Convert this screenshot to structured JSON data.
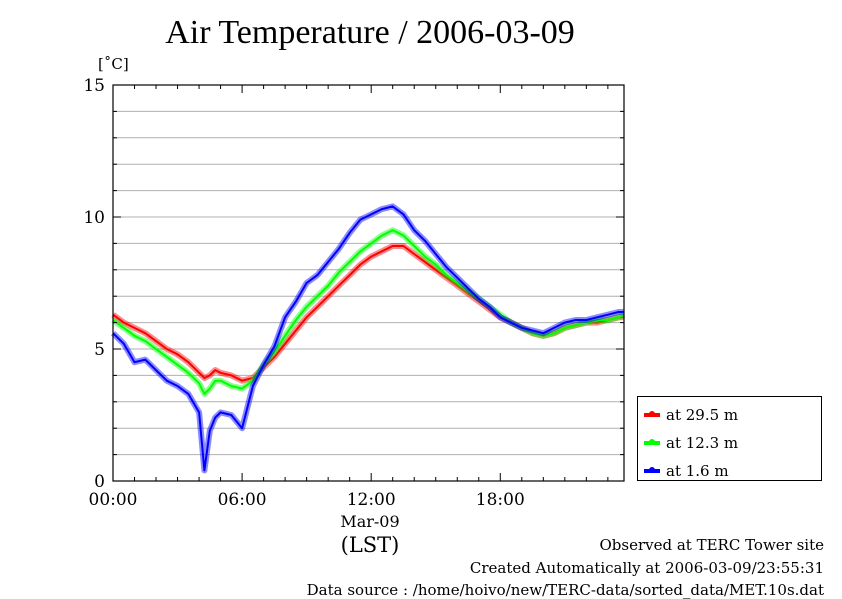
{
  "chart_data": {
    "type": "line",
    "title": "Air Temperature / 2006-03-09",
    "ylabel": "[˚C]",
    "xlabel": "(LST)",
    "x_date_label": "Mar-09",
    "ylim": [
      0,
      15
    ],
    "xlim_hours": [
      0,
      23.75
    ],
    "y_ticks": [
      "0",
      "5",
      "10",
      "15"
    ],
    "x_ticks": [
      {
        "hour": 0,
        "label": "00:00"
      },
      {
        "hour": 6,
        "label": "06:00"
      },
      {
        "hour": 12,
        "label": "12:00"
      },
      {
        "hour": 18,
        "label": "18:00"
      }
    ],
    "grid": true,
    "legend_position": "bottom-right outside",
    "x_hours": [
      0,
      0.5,
      1,
      1.5,
      2,
      2.5,
      3,
      3.5,
      4,
      4.25,
      4.5,
      4.75,
      5,
      5.5,
      6,
      6.5,
      7,
      7.5,
      8,
      8.5,
      9,
      9.5,
      10,
      10.5,
      11,
      11.5,
      12,
      12.5,
      13,
      13.5,
      14,
      14.5,
      15,
      15.5,
      16,
      16.5,
      17,
      17.5,
      18,
      18.5,
      19,
      19.5,
      20,
      20.5,
      21,
      21.5,
      22,
      22.5,
      23,
      23.5,
      23.75
    ],
    "series": [
      {
        "name": "at 29.5 m",
        "color": "#ff0000",
        "values": [
          6.3,
          6.0,
          5.8,
          5.6,
          5.3,
          5.0,
          4.8,
          4.5,
          4.1,
          3.9,
          4.0,
          4.2,
          4.1,
          4.0,
          3.8,
          3.9,
          4.3,
          4.7,
          5.2,
          5.7,
          6.2,
          6.6,
          7.0,
          7.4,
          7.8,
          8.2,
          8.5,
          8.7,
          8.9,
          8.9,
          8.6,
          8.3,
          8.0,
          7.7,
          7.4,
          7.1,
          6.8,
          6.5,
          6.2,
          6.0,
          5.8,
          5.6,
          5.5,
          5.6,
          5.8,
          5.9,
          6.0,
          6.0,
          6.1,
          6.2,
          6.2
        ]
      },
      {
        "name": "at 12.3 m",
        "color": "#00ff00",
        "values": [
          6.1,
          5.8,
          5.5,
          5.3,
          5.0,
          4.7,
          4.4,
          4.1,
          3.7,
          3.3,
          3.5,
          3.8,
          3.8,
          3.6,
          3.5,
          3.8,
          4.4,
          4.9,
          5.5,
          6.1,
          6.6,
          7.0,
          7.4,
          7.9,
          8.3,
          8.7,
          9.0,
          9.3,
          9.5,
          9.3,
          8.9,
          8.5,
          8.2,
          7.8,
          7.5,
          7.2,
          6.9,
          6.6,
          6.3,
          6.0,
          5.8,
          5.6,
          5.5,
          5.6,
          5.8,
          5.9,
          6.0,
          6.1,
          6.1,
          6.2,
          6.3
        ]
      },
      {
        "name": "at 1.6 m",
        "color": "#0000ff",
        "values": [
          5.6,
          5.2,
          4.5,
          4.6,
          4.2,
          3.8,
          3.6,
          3.3,
          2.6,
          0.4,
          1.9,
          2.4,
          2.6,
          2.5,
          2.0,
          3.6,
          4.4,
          5.1,
          6.2,
          6.8,
          7.5,
          7.8,
          8.3,
          8.8,
          9.4,
          9.9,
          10.1,
          10.3,
          10.4,
          10.1,
          9.5,
          9.1,
          8.6,
          8.1,
          7.7,
          7.3,
          6.9,
          6.6,
          6.2,
          6.0,
          5.8,
          5.7,
          5.6,
          5.8,
          6.0,
          6.1,
          6.1,
          6.2,
          6.3,
          6.4,
          6.4
        ]
      }
    ]
  },
  "footer": {
    "line1": "Observed at TERC Tower site",
    "line2": "Created Automatically at 2006-03-09/23:55:31",
    "line3": "Data source : /home/hoivo/new/TERC-data/sorted_data/MET.10s.dat"
  }
}
